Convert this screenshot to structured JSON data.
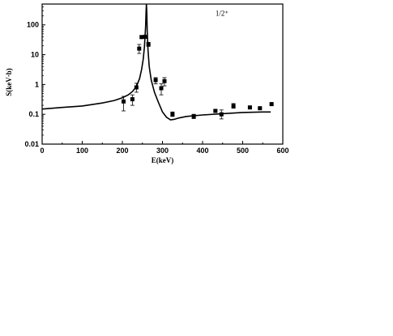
{
  "chart_data": {
    "type": "scatter",
    "title": "",
    "annotation": "1/2⁺",
    "xlabel": "E(keV)",
    "ylabel": "S(keV·b)",
    "xlim": [
      0,
      600
    ],
    "ylim": [
      0.01,
      500
    ],
    "y_scale": "log",
    "x_ticks": [
      0,
      100,
      200,
      300,
      400,
      500,
      600
    ],
    "x_tick_labels": [
      "0",
      "100",
      "200",
      "300",
      "400",
      "500",
      "600"
    ],
    "y_ticks": [
      0.01,
      0.1,
      1,
      10,
      100
    ],
    "y_tick_labels": [
      "0.01",
      "0.1",
      "1",
      "10",
      "100"
    ],
    "grid": false,
    "series": [
      {
        "kind": "points-with-errorbars",
        "color": "#000000",
        "points": [
          {
            "x": 203,
            "y": 0.27,
            "lo": 0.13,
            "hi": 0.4
          },
          {
            "x": 225,
            "y": 0.32,
            "lo": 0.2,
            "hi": 0.45
          },
          {
            "x": 235,
            "y": 0.8,
            "lo": 0.55,
            "hi": 1.1
          },
          {
            "x": 242,
            "y": 16,
            "lo": 11,
            "hi": 22
          },
          {
            "x": 248,
            "y": 39,
            "lo": 35,
            "hi": 44
          },
          {
            "x": 257,
            "y": 40,
            "lo": 36,
            "hi": 45
          },
          {
            "x": 265,
            "y": 22,
            "lo": 19,
            "hi": 26
          },
          {
            "x": 283,
            "y": 1.4,
            "lo": 1.05,
            "hi": 1.7
          },
          {
            "x": 297,
            "y": 0.75,
            "lo": 0.45,
            "hi": 1.05
          },
          {
            "x": 305,
            "y": 1.3,
            "lo": 0.9,
            "hi": 1.7
          },
          {
            "x": 325,
            "y": 0.1,
            "lo": 0.085,
            "hi": 0.12
          },
          {
            "x": 378,
            "y": 0.085,
            "lo": 0.072,
            "hi": 0.1
          },
          {
            "x": 432,
            "y": 0.13,
            "lo": 0.12,
            "hi": 0.14
          },
          {
            "x": 447,
            "y": 0.1,
            "lo": 0.07,
            "hi": 0.14
          },
          {
            "x": 477,
            "y": 0.19,
            "lo": 0.16,
            "hi": 0.23
          },
          {
            "x": 518,
            "y": 0.17,
            "lo": 0.155,
            "hi": 0.185
          },
          {
            "x": 543,
            "y": 0.16,
            "lo": 0.15,
            "hi": 0.17
          },
          {
            "x": 572,
            "y": 0.22,
            "lo": 0.21,
            "hi": 0.23
          }
        ]
      },
      {
        "kind": "curve",
        "color": "#000000",
        "x": [
          0,
          50,
          100,
          150,
          180,
          200,
          215,
          225,
          235,
          243,
          248,
          252,
          255,
          258,
          259,
          260,
          261,
          262,
          264,
          267,
          272,
          280,
          290,
          300,
          310,
          320,
          330,
          340,
          360,
          400,
          450,
          500,
          550,
          570
        ],
        "y": [
          0.15,
          0.17,
          0.19,
          0.24,
          0.29,
          0.36,
          0.45,
          0.58,
          0.85,
          1.6,
          3.2,
          7,
          18,
          90,
          250,
          500,
          250,
          60,
          14,
          4,
          1.4,
          0.55,
          0.25,
          0.12,
          0.08,
          0.065,
          0.068,
          0.075,
          0.085,
          0.095,
          0.105,
          0.115,
          0.12,
          0.12
        ]
      }
    ]
  }
}
